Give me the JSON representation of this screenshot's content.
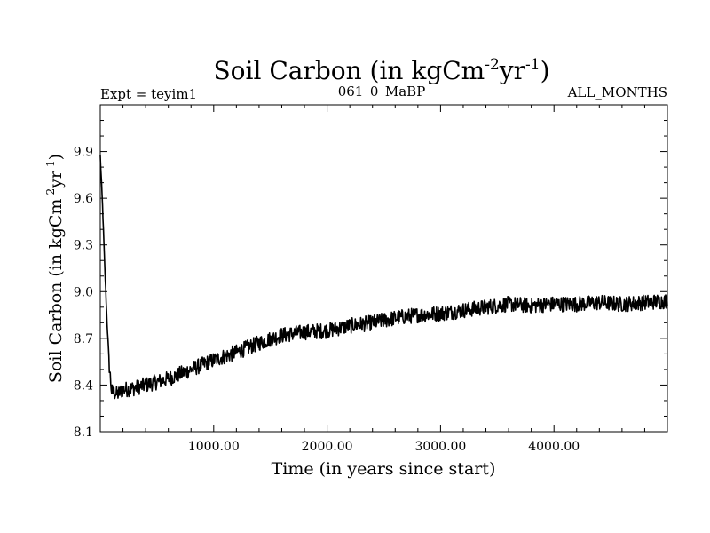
{
  "title": {
    "main": "Soil Carbon (in kgCm",
    "sup1": "-2",
    "mid": "yr",
    "sup2": "-1",
    "end": ")"
  },
  "header": {
    "left": "Expt = teyim1",
    "center": "061_0_MaBP",
    "right": "ALL_MONTHS"
  },
  "colors": {
    "line": "#000000",
    "background": "#ffffff"
  },
  "chart_data": {
    "type": "line",
    "title": "Soil Carbon (in kgCm-2yr-1)",
    "xlabel": "Time (in years since start)",
    "ylabel": {
      "main": "Soil Carbon (in kgCm",
      "sup1": "-2",
      "mid": "yr",
      "sup2": "-1",
      "end": ")"
    },
    "xlim": [
      0,
      5000
    ],
    "ylim": [
      8.1,
      10.2
    ],
    "xticks": [
      1000,
      2000,
      3000,
      4000
    ],
    "xticklabels": [
      "1000.00",
      "2000.00",
      "3000.00",
      "4000.00"
    ],
    "yticks": [
      8.1,
      8.4,
      8.7,
      9.0,
      9.3,
      9.6,
      9.9
    ],
    "yticklabels": [
      "8.1",
      "8.4",
      "8.7",
      "9.0",
      "9.3",
      "9.6",
      "9.9"
    ],
    "grid": false,
    "legend": "none",
    "noise_amplitude": 0.05,
    "series": [
      {
        "x": [
          0,
          20,
          40,
          60,
          80,
          100,
          150,
          200,
          300,
          400,
          500,
          600,
          800,
          1000,
          1200,
          1400,
          1600,
          1800,
          2000,
          2200,
          2400,
          2600,
          2800,
          3000,
          3200,
          3400,
          3600,
          3800,
          4000,
          4200,
          4400,
          4600,
          4800,
          5000
        ],
        "y": [
          9.87,
          9.55,
          9.15,
          8.8,
          8.52,
          8.36,
          8.34,
          8.37,
          8.38,
          8.4,
          8.42,
          8.44,
          8.5,
          8.56,
          8.61,
          8.67,
          8.72,
          8.74,
          8.75,
          8.78,
          8.8,
          8.83,
          8.85,
          8.86,
          8.88,
          8.9,
          8.92,
          8.91,
          8.92,
          8.92,
          8.93,
          8.92,
          8.93,
          8.94
        ]
      }
    ]
  }
}
